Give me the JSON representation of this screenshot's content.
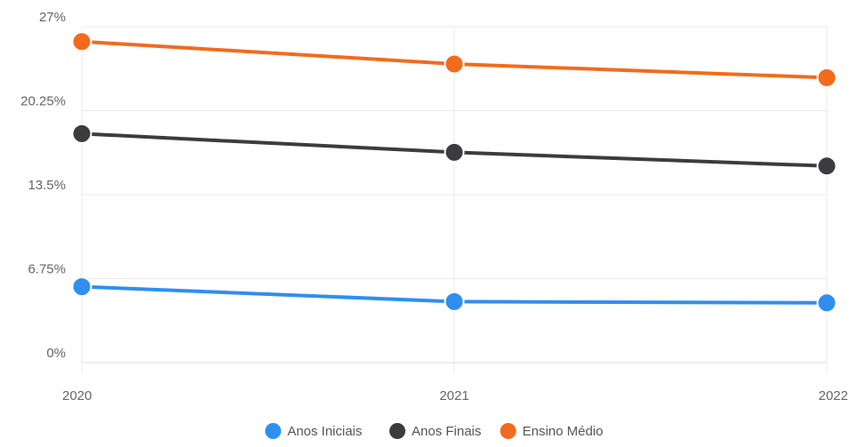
{
  "chart_data": {
    "type": "line",
    "x": [
      "2020",
      "2021",
      "2022"
    ],
    "y_ticks": [
      "0%",
      "6.75%",
      "13.5%",
      "20.25%",
      "27%"
    ],
    "ylim": [
      0,
      27
    ],
    "grid": true,
    "legend_position": "bottom",
    "series": [
      {
        "name": "Anos Iniciais",
        "color": "#2e8ff0",
        "values": [
          6.1,
          4.9,
          4.8
        ]
      },
      {
        "name": "Anos Finais",
        "color": "#3c3c3e",
        "values": [
          18.4,
          16.9,
          15.8
        ]
      },
      {
        "name": "Ensino Médio",
        "color": "#f26b1d",
        "values": [
          25.8,
          24.0,
          22.9
        ]
      }
    ]
  }
}
